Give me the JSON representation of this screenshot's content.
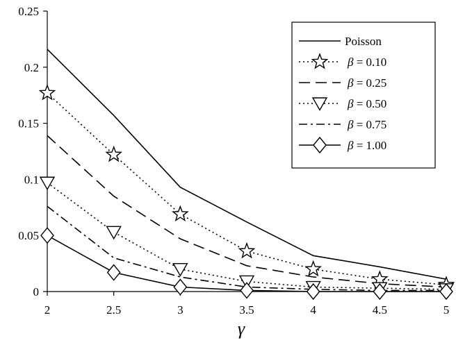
{
  "chart_data": {
    "type": "line",
    "title": "",
    "xlabel": "γ",
    "ylabel": "",
    "x": [
      2,
      2.5,
      3,
      3.5,
      4,
      4.5,
      5
    ],
    "xticks": [
      "2",
      "2.5",
      "3",
      "3.5",
      "4",
      "4.5",
      "5"
    ],
    "yticks": [
      "0",
      "0.05",
      "0.1",
      "0.15",
      "0.2",
      "0.25"
    ],
    "xlim": [
      2,
      5
    ],
    "ylim": [
      0,
      0.25
    ],
    "grid": false,
    "legend_position": "top-right",
    "series": [
      {
        "name": "Poisson",
        "legend_prefix": "",
        "legend_value": "Poisson",
        "style": "solid",
        "marker": "none",
        "values": [
          0.216,
          0.157,
          0.093,
          0.062,
          0.032,
          0.022,
          0.011
        ]
      },
      {
        "name": "β = 0.10",
        "legend_prefix": "β",
        "legend_value": " = 0.10",
        "style": "dotted",
        "marker": "star",
        "values": [
          0.177,
          0.122,
          0.069,
          0.036,
          0.02,
          0.011,
          0.006
        ]
      },
      {
        "name": "β = 0.25",
        "legend_prefix": "β",
        "legend_value": " = 0.25",
        "style": "dashed",
        "marker": "none",
        "values": [
          0.139,
          0.085,
          0.047,
          0.023,
          0.013,
          0.007,
          0.004
        ]
      },
      {
        "name": "β = 0.50",
        "legend_prefix": "β",
        "legend_value": " = 0.50",
        "style": "dotted",
        "marker": "triangle-down",
        "values": [
          0.097,
          0.053,
          0.02,
          0.009,
          0.004,
          0.003,
          0.002
        ]
      },
      {
        "name": "β = 0.75",
        "legend_prefix": "β",
        "legend_value": " = 0.75",
        "style": "dashdot",
        "marker": "none",
        "values": [
          0.076,
          0.03,
          0.013,
          0.004,
          0.002,
          0.001,
          0.001
        ]
      },
      {
        "name": "β = 1.00",
        "legend_prefix": "β",
        "legend_value": " = 1.00",
        "style": "solid",
        "marker": "diamond",
        "values": [
          0.05,
          0.017,
          0.004,
          0.001,
          0.0,
          0.0,
          0.0
        ]
      }
    ]
  }
}
